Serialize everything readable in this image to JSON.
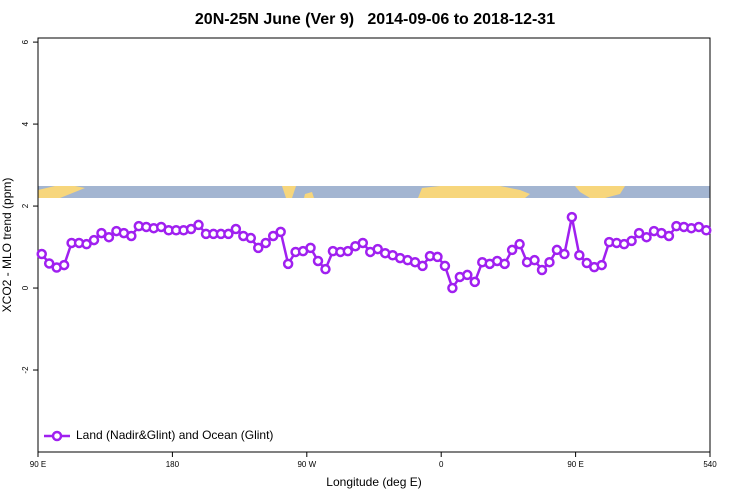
{
  "chart_data": {
    "type": "line",
    "title": "20N-25N June (Ver 9)   2014-09-06 to 2018-12-31",
    "xlabel": "Longitude (deg E)",
    "ylabel": "XCO2 - MLO trend (ppm)",
    "x": [
      92.5,
      97.5,
      102.5,
      107.5,
      112.5,
      117.5,
      122.5,
      127.5,
      132.5,
      137.5,
      142.5,
      147.5,
      152.5,
      157.5,
      162.5,
      167.5,
      172.5,
      177.5,
      182.5,
      187.5,
      192.5,
      197.5,
      202.5,
      207.5,
      212.5,
      217.5,
      222.5,
      227.5,
      232.5,
      237.5,
      242.5,
      247.5,
      252.5,
      257.5,
      262.5,
      267.5,
      272.5,
      277.5,
      282.5,
      287.5,
      292.5,
      297.5,
      302.5,
      307.5,
      312.5,
      317.5,
      322.5,
      327.5,
      332.5,
      337.5,
      342.5,
      347.5,
      352.5,
      357.5,
      362.5,
      367.5,
      372.5,
      377.5,
      382.5,
      387.5,
      392.5,
      397.5,
      402.5,
      407.5,
      412.5,
      417.5,
      422.5,
      427.5,
      432.5,
      437.5,
      442.5,
      447.5,
      452.5,
      457.5,
      462.5,
      467.5,
      472.5,
      477.5,
      482.5,
      487.5,
      492.5,
      497.5,
      502.5,
      507.5,
      512.5,
      517.5,
      522.5,
      527.5,
      532.5,
      537.5
    ],
    "series": [
      {
        "name": "Land (Nadir&Glint) and Ocean (Glint)",
        "color": "#a020f0",
        "values": [
          0.83,
          0.6,
          0.5,
          0.56,
          1.1,
          1.1,
          1.07,
          1.17,
          1.34,
          1.24,
          1.39,
          1.34,
          1.27,
          1.51,
          1.49,
          1.46,
          1.49,
          1.41,
          1.41,
          1.41,
          1.44,
          1.54,
          1.32,
          1.32,
          1.32,
          1.32,
          1.44,
          1.27,
          1.22,
          0.98,
          1.1,
          1.27,
          1.37,
          0.59,
          0.88,
          0.9,
          0.98,
          0.66,
          0.46,
          0.9,
          0.88,
          0.9,
          1.02,
          1.1,
          0.88,
          0.95,
          0.85,
          0.8,
          0.73,
          0.68,
          0.63,
          0.54,
          0.78,
          0.76,
          0.54,
          0,
          0.27,
          0.32,
          0.15,
          0.63,
          0.59,
          0.66,
          0.59,
          0.93,
          1.07,
          0.63,
          0.68,
          0.44,
          0.63,
          0.93,
          0.83,
          1.73,
          0.8,
          0.61,
          0.51,
          0.56,
          1.12,
          1.1,
          1.07,
          1.15,
          1.34,
          1.24,
          1.39,
          1.34,
          1.27,
          1.51,
          1.49,
          1.46,
          1.49,
          1.41
        ]
      }
    ],
    "xlim": [
      90,
      540
    ],
    "xticks": [
      {
        "value": 90,
        "label": "90 E"
      },
      180,
      {
        "value": 270,
        "label": "90 W"
      },
      {
        "value": 360,
        "label": "0"
      },
      {
        "value": 450,
        "label": "90 E"
      },
      540
    ],
    "ylim": [
      -4,
      6.1
    ],
    "yticks": [
      -2,
      0,
      2,
      4,
      6
    ],
    "grid": false,
    "legend": "bottom-left"
  }
}
